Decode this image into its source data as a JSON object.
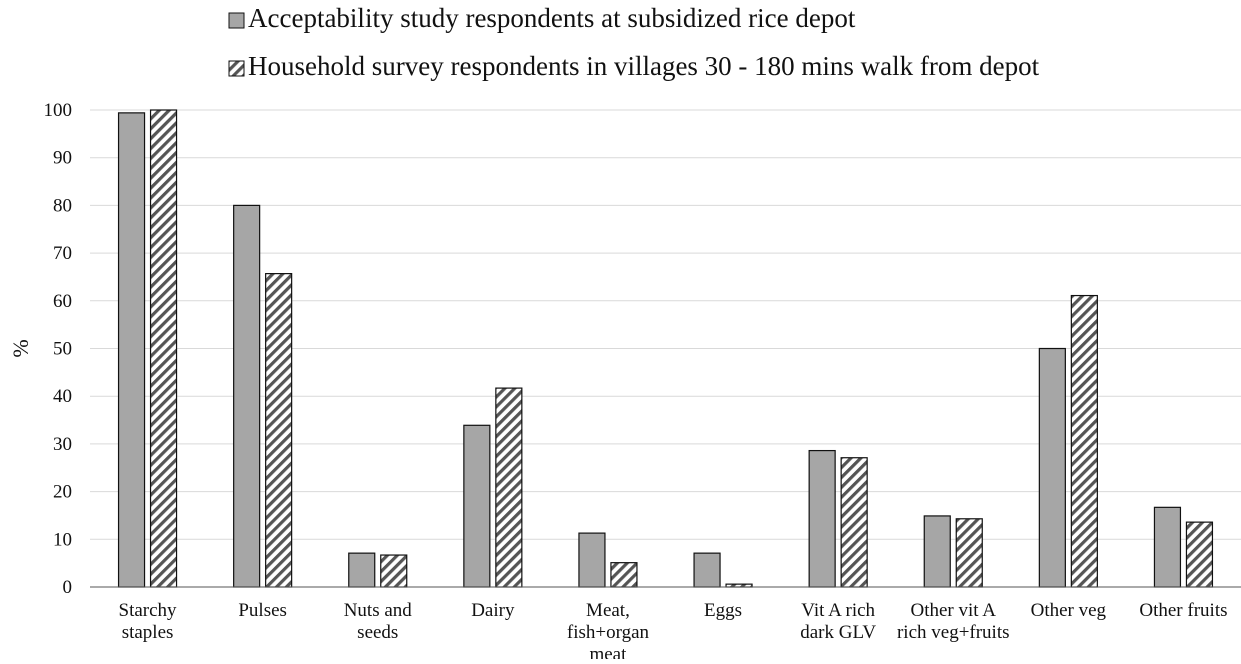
{
  "chart_data": {
    "type": "bar",
    "title": "",
    "xlabel": "",
    "ylabel": "%",
    "ylim": [
      0,
      100
    ],
    "yticks": [
      0,
      10,
      20,
      30,
      40,
      50,
      60,
      70,
      80,
      90,
      100
    ],
    "grid": true,
    "legend_position": "top",
    "categories": [
      [
        "Starchy",
        "staples"
      ],
      [
        "Pulses"
      ],
      [
        "Nuts and",
        "seeds"
      ],
      [
        "Dairy"
      ],
      [
        "Meat,",
        "fish+organ",
        "meat"
      ],
      [
        "Eggs"
      ],
      [
        "Vit A rich",
        "dark GLV"
      ],
      [
        "Other vit A",
        "rich veg+fruits"
      ],
      [
        "Other veg"
      ],
      [
        "Other fruits"
      ]
    ],
    "series": [
      {
        "name": "Acceptability study respondents at subsidized rice depot",
        "fill": "#a6a6a6",
        "pattern": "solid",
        "values": [
          99.4,
          80.0,
          7.1,
          33.9,
          11.3,
          7.1,
          28.6,
          14.9,
          50.0,
          16.7
        ]
      },
      {
        "name": "Household survey respondents in villages 30 - 180 mins walk from depot",
        "fill": "#ffffff",
        "pattern": "diagonal-hatch",
        "values": [
          100.0,
          65.7,
          6.7,
          41.7,
          5.1,
          0.6,
          27.1,
          14.3,
          61.1,
          13.6
        ]
      }
    ]
  }
}
